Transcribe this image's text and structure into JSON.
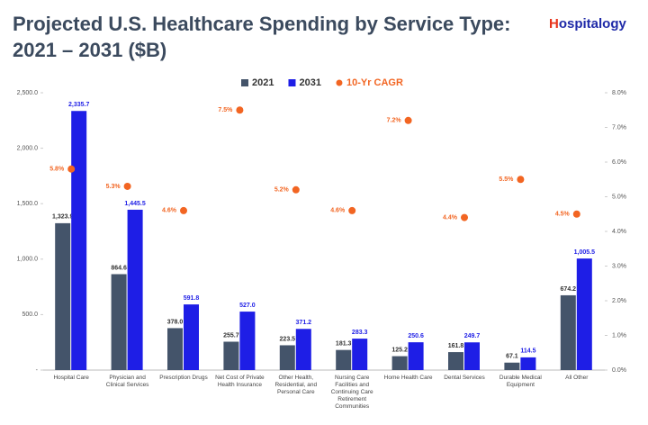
{
  "chart_data": {
    "type": "bar",
    "title": "Projected U.S. Healthcare Spending by Service Type: 2021 – 2031 ($B)",
    "logo": "Hospitalogy",
    "categories": [
      "Hospital Care",
      "Physician and Clinical Services",
      "Prescription Drugs",
      "Net Cost of Private Health Insurance",
      "Other Health, Residential, and Personal Care",
      "Nursing Care Facilities and Continuing Care Retirement Communities",
      "Home Health Care",
      "Dental Services",
      "Durable Medical Equipment",
      "All Other"
    ],
    "series": [
      {
        "name": "2021",
        "color": "#44546a",
        "type": "bar",
        "values": [
          1323.9,
          864.6,
          378.0,
          255.7,
          223.5,
          181.3,
          125.2,
          161.8,
          67.1,
          674.2
        ],
        "value_labels": [
          "1,323.9",
          "864.6",
          "378.0",
          "255.7",
          "223.5",
          "181.3",
          "125.2",
          "161.8",
          "67.1",
          "674.2"
        ]
      },
      {
        "name": "2031",
        "color": "#1e1ee6",
        "type": "bar",
        "values": [
          2335.7,
          1445.5,
          591.8,
          527.0,
          371.2,
          283.3,
          250.6,
          249.7,
          114.5,
          1005.5
        ],
        "value_labels": [
          "2,335.7",
          "1,445.5",
          "591.8",
          "527.0",
          "371.2",
          "283.3",
          "250.6",
          "249.7",
          "114.5",
          "1,005.5"
        ]
      },
      {
        "name": "10-Yr CAGR",
        "color": "#f26522",
        "type": "scatter",
        "axis": "y2",
        "values": [
          5.8,
          5.3,
          4.6,
          7.5,
          5.2,
          4.6,
          7.2,
          4.4,
          5.5,
          4.5
        ],
        "value_labels": [
          "5.8%",
          "5.3%",
          "4.6%",
          "7.5%",
          "5.2%",
          "4.6%",
          "7.2%",
          "4.4%",
          "5.5%",
          "4.5%"
        ]
      }
    ],
    "ylim": [
      0,
      2500
    ],
    "yticks": [
      {
        "value": 0,
        "label": "-"
      },
      {
        "value": 500,
        "label": "500.0"
      },
      {
        "value": 1000,
        "label": "1,000.0"
      },
      {
        "value": 1500,
        "label": "1,500.0"
      },
      {
        "value": 2000,
        "label": "2,000.0"
      },
      {
        "value": 2500,
        "label": "2,500.0"
      }
    ],
    "y2lim": [
      0,
      8
    ],
    "y2ticks": [
      {
        "value": 0,
        "label": "0.0%"
      },
      {
        "value": 1,
        "label": "1.0%"
      },
      {
        "value": 2,
        "label": "2.0%"
      },
      {
        "value": 3,
        "label": "3.0%"
      },
      {
        "value": 4,
        "label": "4.0%"
      },
      {
        "value": 5,
        "label": "5.0%"
      },
      {
        "value": 6,
        "label": "6.0%"
      },
      {
        "value": 7,
        "label": "7.0%"
      },
      {
        "value": 8,
        "label": "8.0%"
      }
    ]
  }
}
